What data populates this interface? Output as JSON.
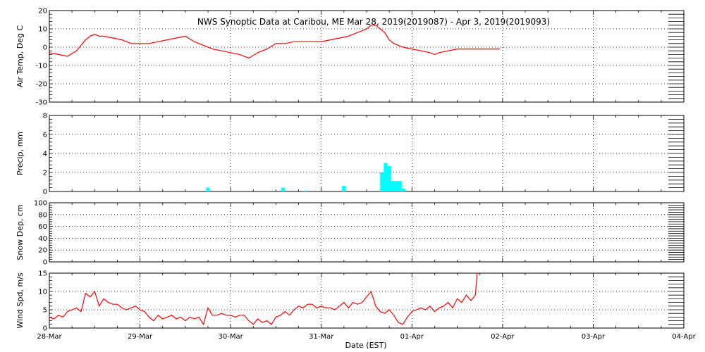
{
  "chart_data": {
    "type": "line",
    "title": "NWS Synoptic Data at Caribou, ME   Mar 28, 2019(2019087) - Apr  3, 2019(2019093)",
    "xlabel": "Date (EST)",
    "x_ticks": [
      "28-Mar",
      "29-Mar",
      "30-Mar",
      "31-Mar",
      "01-Apr",
      "02-Apr",
      "03-Apr",
      "04-Apr"
    ],
    "xlim_days": [
      0,
      7
    ],
    "grid": true,
    "colors": {
      "temp": "#ff0000",
      "precip": "#00ffff",
      "wind": "#ff0000",
      "axis": "#000000"
    },
    "panels": [
      {
        "id": "temp",
        "type": "line",
        "ylabel": "Air Temp, Deg C",
        "ylim": [
          -30,
          20
        ],
        "yticks": [
          20,
          10,
          0,
          -10,
          -20,
          -30
        ],
        "x": [
          0,
          0.1,
          0.2,
          0.3,
          0.4,
          0.45,
          0.5,
          0.55,
          0.6,
          0.7,
          0.8,
          0.9,
          1.0,
          1.1,
          1.2,
          1.3,
          1.4,
          1.5,
          1.6,
          1.65,
          1.7,
          1.8,
          1.9,
          2.0,
          2.1,
          2.2,
          2.3,
          2.4,
          2.5,
          2.6,
          2.7,
          2.8,
          2.9,
          3.0,
          3.1,
          3.2,
          3.3,
          3.4,
          3.5,
          3.55,
          3.6,
          3.65,
          3.7,
          3.75,
          3.8,
          3.85,
          3.9,
          4.0,
          4.1,
          4.2,
          4.25,
          4.3,
          4.4,
          4.5,
          4.6,
          4.7,
          4.8,
          4.9,
          4.97
        ],
        "values": [
          -3,
          -4,
          -5,
          -2,
          4,
          6,
          7,
          6,
          6,
          5,
          4,
          2,
          2,
          2,
          3,
          4,
          5,
          6,
          3,
          2,
          1,
          -1,
          -2,
          -3,
          -4,
          -6,
          -3,
          -1,
          2,
          2,
          3,
          3,
          3,
          3,
          4,
          5,
          6,
          8,
          10,
          12,
          12,
          10,
          8,
          4,
          2,
          1,
          0,
          -1,
          -2,
          -3,
          -4,
          -3,
          -2,
          -1,
          -1,
          -1,
          -1,
          -1,
          -1
        ]
      },
      {
        "id": "precip",
        "type": "bar",
        "ylabel": "Precip, mm",
        "ylim": [
          0,
          8
        ],
        "yticks": [
          8,
          6,
          4,
          2,
          0
        ],
        "x": [
          1.75,
          2.58,
          2.83,
          3.25,
          3.67,
          3.71,
          3.75,
          3.79,
          3.83,
          3.87,
          3.91
        ],
        "values": [
          0.4,
          0.4,
          0.1,
          0.6,
          2.0,
          3.0,
          2.7,
          1.1,
          1.1,
          1.1,
          0.3
        ]
      },
      {
        "id": "snow",
        "type": "line",
        "ylabel": "Snow Dep, cm",
        "ylim": [
          0,
          100
        ],
        "yticks": [
          100,
          80,
          60,
          40,
          20,
          0
        ],
        "x": [],
        "values": []
      },
      {
        "id": "wind",
        "type": "line",
        "ylabel": "Wind Spd, m/s",
        "ylim": [
          0,
          15
        ],
        "yticks": [
          15,
          10,
          5,
          0
        ],
        "x": [
          0,
          0.05,
          0.1,
          0.15,
          0.2,
          0.25,
          0.3,
          0.35,
          0.4,
          0.45,
          0.5,
          0.55,
          0.6,
          0.65,
          0.7,
          0.75,
          0.8,
          0.85,
          0.9,
          0.95,
          1.0,
          1.05,
          1.1,
          1.15,
          1.2,
          1.25,
          1.3,
          1.35,
          1.4,
          1.45,
          1.5,
          1.55,
          1.6,
          1.65,
          1.7,
          1.75,
          1.8,
          1.85,
          1.9,
          1.95,
          2.0,
          2.05,
          2.1,
          2.15,
          2.2,
          2.25,
          2.3,
          2.35,
          2.4,
          2.45,
          2.5,
          2.55,
          2.6,
          2.65,
          2.7,
          2.75,
          2.8,
          2.85,
          2.9,
          2.95,
          3.0,
          3.05,
          3.1,
          3.15,
          3.2,
          3.25,
          3.3,
          3.35,
          3.4,
          3.45,
          3.5,
          3.55,
          3.6,
          3.65,
          3.7,
          3.75,
          3.8,
          3.85,
          3.9,
          3.95,
          4.0,
          4.05,
          4.1,
          4.15,
          4.2,
          4.25,
          4.3,
          4.35,
          4.4,
          4.45,
          4.5,
          4.55,
          4.6,
          4.65,
          4.7,
          4.72
        ],
        "values": [
          3,
          2.5,
          3.5,
          3,
          4.5,
          5,
          5.5,
          4.5,
          9.5,
          8.5,
          10,
          6,
          8,
          7,
          6.5,
          6.5,
          5.5,
          5,
          5.5,
          6,
          5,
          4.5,
          3,
          2,
          3.5,
          2.5,
          3,
          3.5,
          2.5,
          3,
          2,
          3,
          2.5,
          3,
          1,
          5.5,
          3.5,
          3.5,
          4,
          3.5,
          3.5,
          3,
          3.5,
          3.5,
          2,
          1,
          2.5,
          1.5,
          2,
          1,
          3,
          3.5,
          4.5,
          3.5,
          5,
          6,
          5.5,
          6.5,
          6.5,
          5.5,
          6,
          5.5,
          5.5,
          5,
          6,
          7,
          5.5,
          7,
          6.5,
          7,
          8.5,
          10,
          6,
          4.5,
          4,
          5,
          3.5,
          1.5,
          1,
          3,
          4.5,
          5,
          5.5,
          5,
          6,
          4.5,
          5.5,
          6,
          7,
          5.5,
          8,
          7,
          9,
          7.5,
          9,
          15
        ]
      }
    ]
  }
}
